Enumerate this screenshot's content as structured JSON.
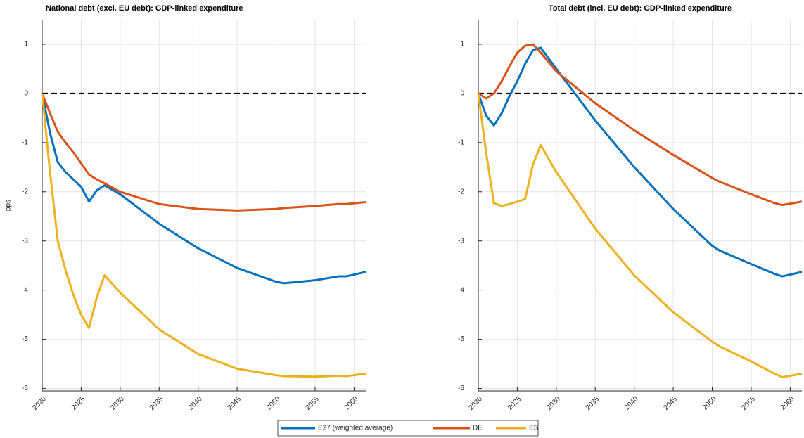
{
  "chart_data": [
    {
      "type": "line",
      "title": "National debt (excl. EU debt): GDP-linked expenditure",
      "ylabel": "pps",
      "x": [
        2020,
        2021,
        2022,
        2023,
        2024,
        2025,
        2026,
        2027,
        2028,
        2030,
        2035,
        2040,
        2045,
        2050,
        2051,
        2055,
        2058,
        2059,
        2061.5
      ],
      "series": [
        {
          "name": "E27 (weighted average)",
          "color": "#0072BD",
          "values": [
            0,
            -0.8,
            -1.4,
            -1.6,
            -1.75,
            -1.9,
            -2.2,
            -1.97,
            -1.87,
            -2.05,
            -2.65,
            -3.15,
            -3.55,
            -3.83,
            -3.86,
            -3.8,
            -3.72,
            -3.72,
            -3.63
          ]
        },
        {
          "name": "DE",
          "color": "#D95319",
          "values": [
            0,
            -0.4,
            -0.78,
            -1.0,
            -1.2,
            -1.42,
            -1.65,
            -1.75,
            -1.83,
            -2.0,
            -2.25,
            -2.35,
            -2.38,
            -2.35,
            -2.33,
            -2.29,
            -2.25,
            -2.25,
            -2.21
          ]
        },
        {
          "name": "ES",
          "color": "#EDB120",
          "values": [
            0,
            -1.6,
            -3.0,
            -3.6,
            -4.1,
            -4.5,
            -4.77,
            -4.15,
            -3.7,
            -4.05,
            -4.8,
            -5.3,
            -5.6,
            -5.73,
            -5.75,
            -5.76,
            -5.74,
            -5.75,
            -5.7
          ]
        }
      ],
      "xlim": [
        2020,
        2061.5
      ],
      "ylim": [
        -6.05,
        1.5
      ],
      "xticks": [
        2020,
        2025,
        2030,
        2035,
        2040,
        2045,
        2050,
        2055,
        2060
      ],
      "yticks": [
        -6,
        -5,
        -4,
        -3,
        -2,
        -1,
        0,
        1
      ],
      "grid": true,
      "hline": 0,
      "legend": "bottom"
    },
    {
      "type": "line",
      "title": "Total debt (incl. EU debt): GDP-linked expenditure",
      "x": [
        2020,
        2021,
        2022,
        2023,
        2024,
        2025,
        2026,
        2027,
        2028,
        2030,
        2035,
        2040,
        2045,
        2050,
        2051,
        2055,
        2058,
        2059,
        2061.5
      ],
      "series": [
        {
          "color": "#0072BD",
          "values": [
            0,
            -0.45,
            -0.65,
            -0.4,
            -0.05,
            0.25,
            0.6,
            0.88,
            0.93,
            0.5,
            -0.55,
            -1.5,
            -2.35,
            -3.1,
            -3.2,
            -3.47,
            -3.67,
            -3.72,
            -3.63
          ]
        },
        {
          "color": "#D95319",
          "values": [
            0,
            -0.1,
            0.0,
            0.25,
            0.55,
            0.83,
            0.97,
            1.0,
            0.83,
            0.45,
            -0.2,
            -0.75,
            -1.25,
            -1.72,
            -1.8,
            -2.05,
            -2.23,
            -2.27,
            -2.2
          ]
        },
        {
          "color": "#EDB120",
          "values": [
            0,
            -1.2,
            -2.23,
            -2.29,
            -2.25,
            -2.2,
            -2.15,
            -1.45,
            -1.05,
            -1.6,
            -2.75,
            -3.7,
            -4.45,
            -5.05,
            -5.15,
            -5.45,
            -5.7,
            -5.77,
            -5.7
          ]
        }
      ],
      "xlim": [
        2020,
        2061.5
      ],
      "ylim": [
        -6.05,
        1.5
      ],
      "xticks": [
        2020,
        2025,
        2030,
        2035,
        2040,
        2045,
        2050,
        2055,
        2060
      ],
      "yticks": [
        -6,
        -5,
        -4,
        -3,
        -2,
        -1,
        0,
        1
      ],
      "grid": true,
      "hline": 0
    }
  ]
}
